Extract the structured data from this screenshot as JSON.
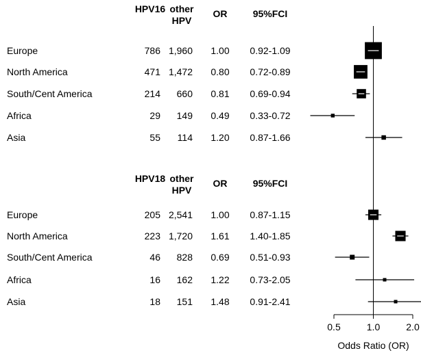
{
  "chart_data": {
    "type": "forest",
    "x_scale": "log",
    "xlim": [
      0.3,
      2.0
    ],
    "x_ticks": [
      {
        "value": 0.5,
        "label": "0.5"
      },
      {
        "value": 1.0,
        "label": "1.0"
      },
      {
        "value": 2.0,
        "label": "2.0"
      }
    ],
    "xlabel": "Odds Ratio (OR)",
    "reference_line": 1.0,
    "panels": [
      {
        "headers": {
          "type": "HPV16",
          "other": "other\nHPV",
          "or": "OR",
          "ci": "95%FCI"
        },
        "rows": [
          {
            "region": "Europe",
            "n_type": "786",
            "n_other": "1,960",
            "or_label": "1.00",
            "ci_label": "0.92-1.09",
            "or": 1.0,
            "ci": [
              0.92,
              1.09
            ]
          },
          {
            "region": "North America",
            "n_type": "471",
            "n_other": "1,472",
            "or_label": "0.80",
            "ci_label": "0.72-0.89",
            "or": 0.8,
            "ci": [
              0.72,
              0.89
            ]
          },
          {
            "region": "South/Cent America",
            "n_type": "214",
            "n_other": "660",
            "or_label": "0.81",
            "ci_label": "0.69-0.94",
            "or": 0.81,
            "ci": [
              0.69,
              0.94
            ]
          },
          {
            "region": "Africa",
            "n_type": "29",
            "n_other": "149",
            "or_label": "0.49",
            "ci_label": "0.33-0.72",
            "or": 0.49,
            "ci": [
              0.33,
              0.72
            ]
          },
          {
            "region": "Asia",
            "n_type": "55",
            "n_other": "114",
            "or_label": "1.20",
            "ci_label": "0.87-1.66",
            "or": 1.2,
            "ci": [
              0.87,
              1.66
            ]
          }
        ]
      },
      {
        "headers": {
          "type": "HPV18",
          "other": "other\nHPV",
          "or": "OR",
          "ci": "95%FCI"
        },
        "rows": [
          {
            "region": "Europe",
            "n_type": "205",
            "n_other": "2,541",
            "or_label": "1.00",
            "ci_label": "0.87-1.15",
            "or": 1.0,
            "ci": [
              0.87,
              1.15
            ]
          },
          {
            "region": "North America",
            "n_type": "223",
            "n_other": "1,720",
            "or_label": "1.61",
            "ci_label": "1.40-1.85",
            "or": 1.61,
            "ci": [
              1.4,
              1.85
            ]
          },
          {
            "region": "South/Cent America",
            "n_type": "46",
            "n_other": "828",
            "or_label": "0.69",
            "ci_label": "0.51-0.93",
            "or": 0.69,
            "ci": [
              0.51,
              0.93
            ]
          },
          {
            "region": "Africa",
            "n_type": "16",
            "n_other": "162",
            "or_label": "1.22",
            "ci_label": "0.73-2.05",
            "or": 1.22,
            "ci": [
              0.73,
              2.05
            ]
          },
          {
            "region": "Asia",
            "n_type": "18",
            "n_other": "151",
            "or_label": "1.48",
            "ci_label": "0.91-2.41",
            "or": 1.48,
            "ci": [
              0.91,
              2.41
            ]
          }
        ]
      }
    ]
  }
}
